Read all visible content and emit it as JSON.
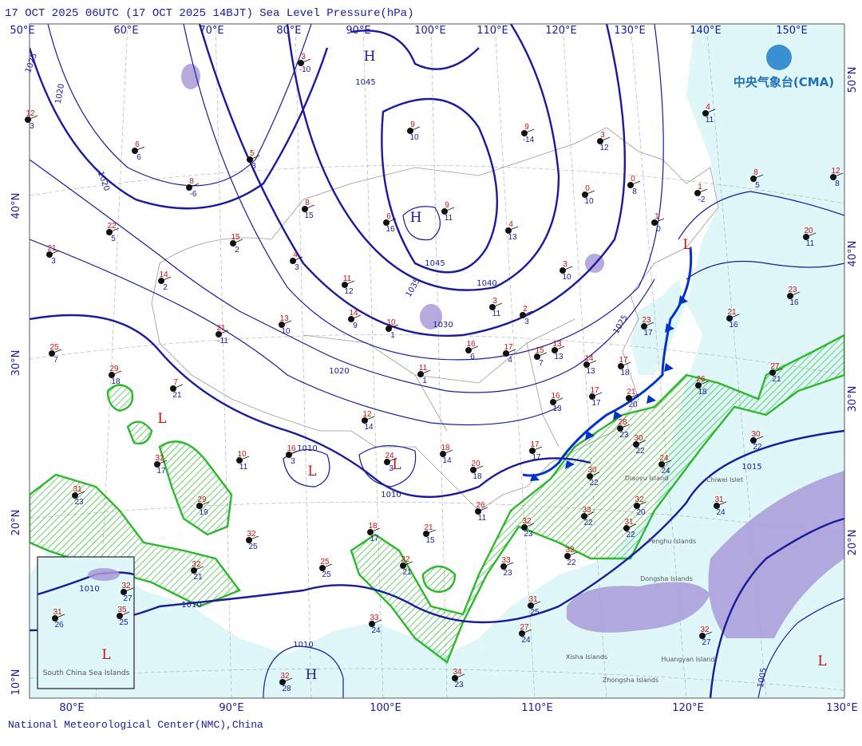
{
  "header": {
    "title": "17 OCT 2025 06UTC  (17 OCT 2025 14BJT) Sea Level Pressure(hPa)"
  },
  "logo": "中央气象台(CMA)",
  "footer": "National Meteorological Center(NMC),China",
  "top_longitudes": [
    "50°E",
    "60°E",
    "70°E",
    "80°E",
    "90°E",
    "100°E",
    "110°E",
    "120°E",
    "130°E",
    "140°E",
    "150°E"
  ],
  "bottom_longitudes": [
    "80°E",
    "90°E",
    "100°E",
    "110°E",
    "120°E",
    "130°E"
  ],
  "left_latitudes": [
    "40°N",
    "30°N",
    "20°N",
    "10°N"
  ],
  "right_latitudes": [
    "50°N",
    "40°N",
    "30°N",
    "20°N"
  ],
  "isobar_labels": [
    "1025",
    "1020",
    "1020",
    "1045",
    "1045",
    "1040",
    "1035",
    "1030",
    "1025",
    "1020",
    "1010",
    "1010",
    "1015",
    "1010",
    "1010",
    "1005",
    "1010"
  ],
  "pressure_centers": [
    "H",
    "H",
    "L",
    "L",
    "L",
    "L",
    "L",
    "H",
    "L"
  ],
  "place_labels": [
    "Chiwei Islet",
    "Diaoyu Island",
    "Penghu Islands",
    "Dongsha Islands",
    "Xisha Islands",
    "Huangyan Island",
    "Zhongsha Islands",
    "South China Sea Islands"
  ],
  "stations": [
    {
      "temperature": "12",
      "pressure": "3"
    },
    {
      "temperature": "6",
      "pressure": "6"
    },
    {
      "temperature": "8",
      "pressure": "-6"
    },
    {
      "temperature": "3",
      "pressure": "-10"
    },
    {
      "temperature": "5",
      "pressure": "3"
    },
    {
      "temperature": "22",
      "pressure": "5"
    },
    {
      "temperature": "21",
      "pressure": "3"
    },
    {
      "temperature": "15",
      "pressure": "2"
    },
    {
      "temperature": "14",
      "pressure": "2"
    },
    {
      "temperature": "8",
      "pressure": "15"
    },
    {
      "temperature": "4",
      "pressure": "3"
    },
    {
      "temperature": "21",
      "pressure": "-11"
    },
    {
      "temperature": "13",
      "pressure": "10"
    },
    {
      "temperature": "11",
      "pressure": "12"
    },
    {
      "temperature": "14",
      "pressure": "9"
    },
    {
      "temperature": "10",
      "pressure": "1"
    },
    {
      "temperature": "9",
      "pressure": "10"
    },
    {
      "temperature": "6",
      "pressure": "16"
    },
    {
      "temperature": "9",
      "pressure": "11"
    },
    {
      "temperature": "9",
      "pressure": "-14"
    },
    {
      "temperature": "4",
      "pressure": "13"
    },
    {
      "temperature": "3",
      "pressure": "12"
    },
    {
      "temperature": "0",
      "pressure": "10"
    },
    {
      "temperature": "0",
      "pressure": "8"
    },
    {
      "temperature": "1",
      "pressure": "0"
    },
    {
      "temperature": "1",
      "pressure": "-2"
    },
    {
      "temperature": "4",
      "pressure": "11"
    },
    {
      "temperature": "8",
      "pressure": "5"
    },
    {
      "temperature": "12",
      "pressure": "8"
    },
    {
      "temperature": "20",
      "pressure": "11"
    },
    {
      "temperature": "23",
      "pressure": "16"
    },
    {
      "temperature": "21",
      "pressure": "16"
    },
    {
      "temperature": "3",
      "pressure": "10"
    },
    {
      "temperature": "3",
      "pressure": "11"
    },
    {
      "temperature": "2",
      "pressure": "3"
    },
    {
      "temperature": "16",
      "pressure": "6"
    },
    {
      "temperature": "17",
      "pressure": "4"
    },
    {
      "temperature": "15",
      "pressure": "7"
    },
    {
      "temperature": "13",
      "pressure": "13"
    },
    {
      "temperature": "14",
      "pressure": "13"
    },
    {
      "temperature": "11",
      "pressure": "1"
    },
    {
      "temperature": "25",
      "pressure": "7"
    },
    {
      "temperature": "29",
      "pressure": "18"
    },
    {
      "temperature": "7",
      "pressure": "21"
    },
    {
      "temperature": "12",
      "pressure": "14"
    },
    {
      "temperature": "16",
      "pressure": "3"
    },
    {
      "temperature": "10",
      "pressure": "11"
    },
    {
      "temperature": "24",
      "pressure": "3"
    },
    {
      "temperature": "18",
      "pressure": "14"
    },
    {
      "temperature": "20",
      "pressure": "18"
    },
    {
      "temperature": "17",
      "pressure": "17"
    },
    {
      "temperature": "32",
      "pressure": "17"
    },
    {
      "temperature": "31",
      "pressure": "23"
    },
    {
      "temperature": "29",
      "pressure": "19"
    },
    {
      "temperature": "32",
      "pressure": "25"
    },
    {
      "temperature": "32",
      "pressure": "21"
    },
    {
      "temperature": "25",
      "pressure": "25"
    },
    {
      "temperature": "18",
      "pressure": "17"
    },
    {
      "temperature": "21",
      "pressure": "15"
    },
    {
      "temperature": "22",
      "pressure": "21"
    },
    {
      "temperature": "26",
      "pressure": "11"
    },
    {
      "temperature": "32",
      "pressure": "23"
    },
    {
      "temperature": "33",
      "pressure": "23"
    },
    {
      "temperature": "33",
      "pressure": "22"
    },
    {
      "temperature": "32",
      "pressure": "22"
    },
    {
      "temperature": "31",
      "pressure": "22"
    },
    {
      "temperature": "30",
      "pressure": "22"
    },
    {
      "temperature": "30",
      "pressure": "22"
    },
    {
      "temperature": "28",
      "pressure": "23"
    },
    {
      "temperature": "24",
      "pressure": "24"
    },
    {
      "temperature": "32",
      "pressure": "20"
    },
    {
      "temperature": "26",
      "pressure": "18"
    },
    {
      "temperature": "27",
      "pressure": "21"
    },
    {
      "temperature": "30",
      "pressure": "22"
    },
    {
      "temperature": "31",
      "pressure": "24"
    },
    {
      "temperature": "33",
      "pressure": "24"
    },
    {
      "temperature": "34",
      "pressure": "23"
    },
    {
      "temperature": "32",
      "pressure": "28"
    },
    {
      "temperature": "31",
      "pressure": "25"
    },
    {
      "temperature": "27",
      "pressure": "24"
    },
    {
      "temperature": "32",
      "pressure": "27"
    },
    {
      "temperature": "21",
      "pressure": "20"
    },
    {
      "temperature": "17",
      "pressure": "17"
    },
    {
      "temperature": "16",
      "pressure": "13"
    },
    {
      "temperature": "17",
      "pressure": "18"
    },
    {
      "temperature": "23",
      "pressure": "17"
    },
    {
      "temperature": "31",
      "pressure": "26"
    },
    {
      "temperature": "35",
      "pressure": "25"
    },
    {
      "temperature": "32",
      "pressure": "27"
    }
  ]
}
